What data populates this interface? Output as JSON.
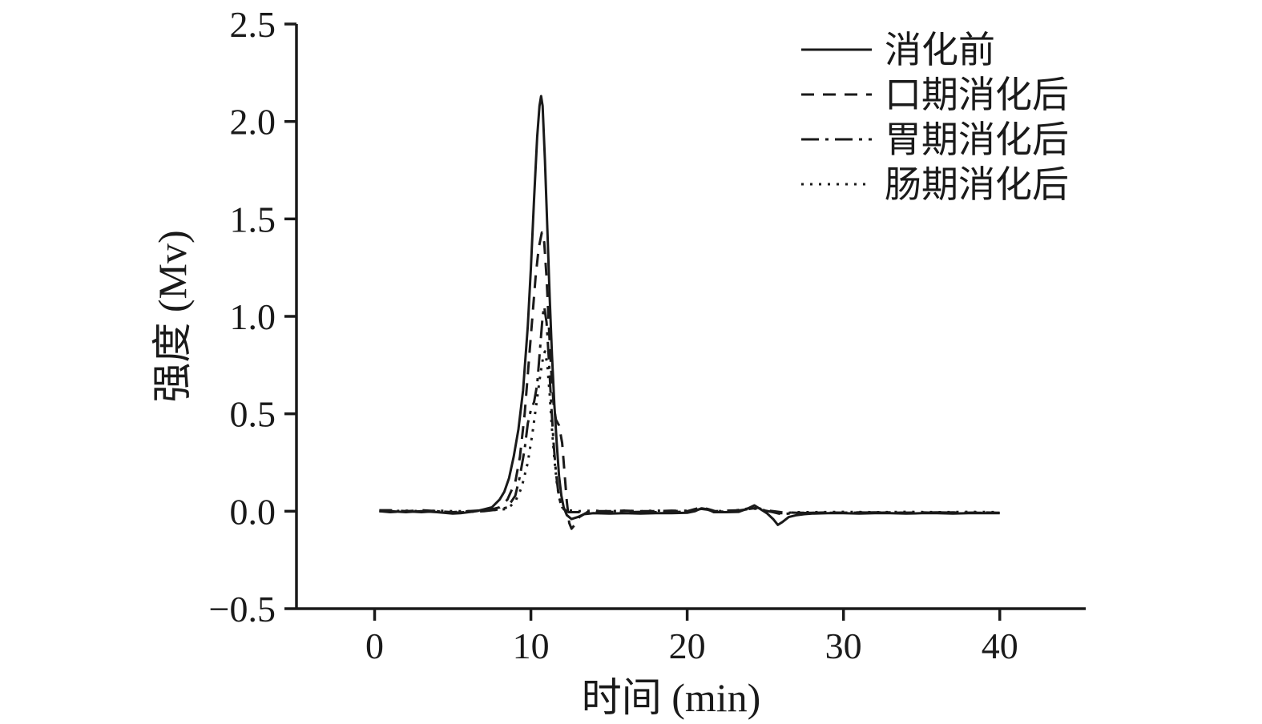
{
  "figure": {
    "title": "chromatogram intensity vs time during in-vitro digestion stages"
  },
  "chart_data": {
    "type": "line",
    "title": "",
    "xlabel": "时间 (min)",
    "ylabel": "强度 (Mv)",
    "xlim": [
      -5,
      45.5
    ],
    "ylim": [
      -0.5,
      2.5
    ],
    "xticks": [
      0,
      10,
      20,
      30,
      40
    ],
    "xtick_labels": [
      "0",
      "10",
      "20",
      "30",
      "40"
    ],
    "yticks": [
      -0.5,
      0.0,
      0.5,
      1.0,
      1.5,
      2.0,
      2.5
    ],
    "ytick_labels": [
      "−0.5",
      "0.0",
      "0.5",
      "1.0",
      "1.5",
      "2.0",
      "2.5"
    ],
    "grid": false,
    "legend_position": "top-right",
    "line_color": "#1a1a1a",
    "series": [
      {
        "name": "消化前",
        "line_style": "solid",
        "peak": {
          "x": 10.65,
          "y": 2.13
        },
        "points": [
          [
            0.3,
            0
          ],
          [
            1,
            0
          ],
          [
            2,
            -0.005
          ],
          [
            3,
            0
          ],
          [
            4,
            -0.005
          ],
          [
            5,
            -0.012
          ],
          [
            5.5,
            -0.01
          ],
          [
            6,
            -0.005
          ],
          [
            6.5,
            0
          ],
          [
            7,
            0.01
          ],
          [
            7.5,
            0.02
          ],
          [
            8,
            0.06
          ],
          [
            8.3,
            0.1
          ],
          [
            8.6,
            0.17
          ],
          [
            8.9,
            0.28
          ],
          [
            9.2,
            0.42
          ],
          [
            9.5,
            0.62
          ],
          [
            9.8,
            0.95
          ],
          [
            10,
            1.25
          ],
          [
            10.2,
            1.6
          ],
          [
            10.4,
            1.92
          ],
          [
            10.55,
            2.08
          ],
          [
            10.65,
            2.13
          ],
          [
            10.75,
            2.08
          ],
          [
            10.9,
            1.8
          ],
          [
            11.05,
            1.45
          ],
          [
            11.2,
            1.1
          ],
          [
            11.35,
            0.8
          ],
          [
            11.5,
            0.55
          ],
          [
            11.65,
            0.35
          ],
          [
            11.8,
            0.18
          ],
          [
            11.95,
            0.08
          ],
          [
            12.1,
            0.02
          ],
          [
            12.3,
            -0.02
          ],
          [
            12.6,
            -0.04
          ],
          [
            13,
            -0.03
          ],
          [
            13.4,
            -0.015
          ],
          [
            14,
            -0.01
          ],
          [
            15,
            -0.012
          ],
          [
            16,
            -0.01
          ],
          [
            17,
            -0.012
          ],
          [
            18,
            -0.01
          ],
          [
            19,
            -0.01
          ],
          [
            20,
            -0.008
          ],
          [
            20.5,
            0
          ],
          [
            20.9,
            0.015
          ],
          [
            21.3,
            0.01
          ],
          [
            21.7,
            -0.005
          ],
          [
            22.5,
            -0.005
          ],
          [
            23.3,
            -0.003
          ],
          [
            23.9,
            0.015
          ],
          [
            24.3,
            0.03
          ],
          [
            24.7,
            0.01
          ],
          [
            25.1,
            -0.01
          ],
          [
            25.5,
            -0.04
          ],
          [
            25.8,
            -0.07
          ],
          [
            26.1,
            -0.055
          ],
          [
            26.5,
            -0.03
          ],
          [
            27,
            -0.02
          ],
          [
            27.5,
            -0.015
          ],
          [
            28,
            -0.012
          ],
          [
            29,
            -0.01
          ],
          [
            30,
            -0.01
          ],
          [
            31,
            -0.012
          ],
          [
            32,
            -0.01
          ],
          [
            33,
            -0.01
          ],
          [
            34,
            -0.012
          ],
          [
            35,
            -0.01
          ],
          [
            36,
            -0.01
          ],
          [
            37,
            -0.012
          ],
          [
            38,
            -0.01
          ],
          [
            39,
            -0.01
          ],
          [
            40,
            -0.01
          ]
        ]
      },
      {
        "name": "口期消化后",
        "line_style": "dashed",
        "peak": {
          "x": 10.7,
          "y": 1.43
        },
        "points": [
          [
            0.3,
            0.005
          ],
          [
            1,
            0.005
          ],
          [
            2,
            0
          ],
          [
            3,
            0.005
          ],
          [
            4,
            0
          ],
          [
            5,
            -0.005
          ],
          [
            6,
            0
          ],
          [
            7,
            0.005
          ],
          [
            7.5,
            0.01
          ],
          [
            8,
            0.02
          ],
          [
            8.5,
            0.06
          ],
          [
            9,
            0.15
          ],
          [
            9.3,
            0.28
          ],
          [
            9.6,
            0.5
          ],
          [
            9.9,
            0.8
          ],
          [
            10.1,
            1.0
          ],
          [
            10.3,
            1.2
          ],
          [
            10.5,
            1.35
          ],
          [
            10.7,
            1.43
          ],
          [
            10.85,
            1.38
          ],
          [
            11,
            1.2
          ],
          [
            11.15,
            0.95
          ],
          [
            11.3,
            0.72
          ],
          [
            11.45,
            0.55
          ],
          [
            11.6,
            0.47
          ],
          [
            11.8,
            0.44
          ],
          [
            12,
            0.35
          ],
          [
            12.15,
            0.2
          ],
          [
            12.3,
            0.05
          ],
          [
            12.45,
            -0.06
          ],
          [
            12.6,
            -0.09
          ],
          [
            12.8,
            -0.07
          ],
          [
            13.1,
            -0.03
          ],
          [
            13.5,
            -0.01
          ],
          [
            14,
            0
          ],
          [
            15,
            0
          ],
          [
            16,
            0.003
          ],
          [
            17,
            0
          ],
          [
            18,
            0
          ],
          [
            19,
            0.003
          ],
          [
            20,
            0
          ],
          [
            20.9,
            0.02
          ],
          [
            21.3,
            0.012
          ],
          [
            21.8,
            0
          ],
          [
            22.5,
            0.003
          ],
          [
            23.5,
            0.005
          ],
          [
            24,
            0.012
          ],
          [
            24.5,
            0.018
          ],
          [
            25,
            0.005
          ],
          [
            25.5,
            0
          ],
          [
            26,
            -0.005
          ],
          [
            27,
            -0.008
          ],
          [
            28,
            -0.008
          ],
          [
            29,
            -0.006
          ],
          [
            30,
            -0.008
          ],
          [
            31,
            -0.006
          ],
          [
            32,
            -0.008
          ],
          [
            33,
            -0.006
          ],
          [
            34,
            -0.008
          ],
          [
            35,
            -0.006
          ],
          [
            36,
            -0.008
          ],
          [
            37,
            -0.006
          ],
          [
            38,
            -0.008
          ],
          [
            39,
            -0.006
          ],
          [
            40,
            -0.008
          ]
        ]
      },
      {
        "name": "胃期消化后",
        "line_style": "dashdot",
        "peak": {
          "x": 10.85,
          "y": 1.05
        },
        "points": [
          [
            0.3,
            0
          ],
          [
            1,
            -0.005
          ],
          [
            2,
            0
          ],
          [
            3,
            -0.005
          ],
          [
            4,
            0
          ],
          [
            5,
            -0.008
          ],
          [
            6,
            -0.003
          ],
          [
            7,
            0
          ],
          [
            8,
            0.01
          ],
          [
            8.5,
            0.02
          ],
          [
            9,
            0.08
          ],
          [
            9.3,
            0.18
          ],
          [
            9.6,
            0.32
          ],
          [
            9.8,
            0.45
          ],
          [
            10,
            0.52
          ],
          [
            10.2,
            0.56
          ],
          [
            10.4,
            0.65
          ],
          [
            10.6,
            0.85
          ],
          [
            10.75,
            1.0
          ],
          [
            10.85,
            1.05
          ],
          [
            11,
            0.97
          ],
          [
            11.15,
            0.78
          ],
          [
            11.3,
            0.55
          ],
          [
            11.45,
            0.35
          ],
          [
            11.6,
            0.2
          ],
          [
            11.75,
            0.1
          ],
          [
            11.9,
            0.04
          ],
          [
            12.1,
            0.01
          ],
          [
            12.4,
            -0.005
          ],
          [
            13,
            -0.005
          ],
          [
            14,
            -0.005
          ],
          [
            15,
            -0.003
          ],
          [
            16,
            -0.005
          ],
          [
            17,
            -0.003
          ],
          [
            18,
            -0.005
          ],
          [
            19,
            -0.003
          ],
          [
            20,
            -0.003
          ],
          [
            20.9,
            0.012
          ],
          [
            21.3,
            0.008
          ],
          [
            21.8,
            -0.003
          ],
          [
            23,
            0
          ],
          [
            24,
            0.012
          ],
          [
            24.5,
            0.015
          ],
          [
            25,
            0.003
          ],
          [
            25.5,
            -0.005
          ],
          [
            26,
            -0.015
          ],
          [
            26.5,
            -0.012
          ],
          [
            27,
            -0.01
          ],
          [
            28,
            -0.008
          ],
          [
            30,
            -0.008
          ],
          [
            32,
            -0.006
          ],
          [
            34,
            -0.008
          ],
          [
            36,
            -0.006
          ],
          [
            38,
            -0.008
          ],
          [
            40,
            -0.008
          ]
        ]
      },
      {
        "name": "肠期消化后",
        "line_style": "dotted",
        "peak": {
          "x": 10.9,
          "y": 0.82
        },
        "points": [
          [
            0.3,
            0.003
          ],
          [
            1,
            0
          ],
          [
            2,
            0.003
          ],
          [
            3,
            0
          ],
          [
            4,
            0.003
          ],
          [
            5,
            0
          ],
          [
            6,
            0
          ],
          [
            7,
            0.003
          ],
          [
            8,
            0.008
          ],
          [
            8.5,
            0.012
          ],
          [
            9,
            0.05
          ],
          [
            9.4,
            0.12
          ],
          [
            9.8,
            0.25
          ],
          [
            10.1,
            0.4
          ],
          [
            10.4,
            0.58
          ],
          [
            10.6,
            0.7
          ],
          [
            10.8,
            0.8
          ],
          [
            10.9,
            0.82
          ],
          [
            11.05,
            0.75
          ],
          [
            11.2,
            0.6
          ],
          [
            11.35,
            0.42
          ],
          [
            11.5,
            0.27
          ],
          [
            11.65,
            0.15
          ],
          [
            11.8,
            0.07
          ],
          [
            12,
            0.02
          ],
          [
            12.3,
            0.005
          ],
          [
            13,
            0
          ],
          [
            14,
            0.003
          ],
          [
            15,
            0
          ],
          [
            16,
            0.003
          ],
          [
            17,
            0
          ],
          [
            18,
            0.003
          ],
          [
            19,
            0
          ],
          [
            20,
            0.003
          ],
          [
            20.9,
            0.015
          ],
          [
            21.3,
            0.01
          ],
          [
            21.8,
            0
          ],
          [
            23,
            0.003
          ],
          [
            24,
            0.015
          ],
          [
            24.5,
            0.012
          ],
          [
            25,
            0.003
          ],
          [
            25.5,
            -0.003
          ],
          [
            26,
            -0.01
          ],
          [
            26.5,
            -0.008
          ],
          [
            27,
            -0.005
          ],
          [
            28,
            -0.005
          ],
          [
            30,
            -0.003
          ],
          [
            32,
            -0.005
          ],
          [
            34,
            -0.003
          ],
          [
            36,
            -0.005
          ],
          [
            38,
            -0.003
          ],
          [
            40,
            -0.005
          ]
        ]
      }
    ]
  }
}
